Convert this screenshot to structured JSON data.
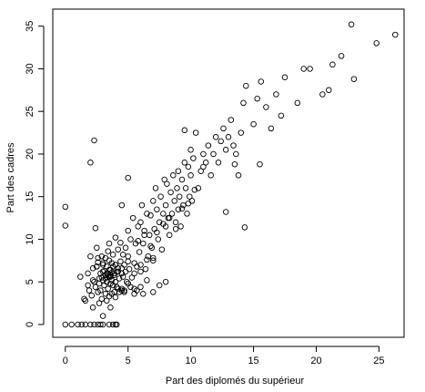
{
  "chart_data": {
    "type": "scatter",
    "title": "",
    "xlabel": "Part des diplomés du supérieur",
    "ylabel": "Part des cadres",
    "xlim": [
      -1,
      27
    ],
    "ylim": [
      -1.5,
      37
    ],
    "xticks": [
      0,
      5,
      10,
      15,
      20,
      25
    ],
    "yticks": [
      0,
      5,
      10,
      15,
      20,
      25,
      30,
      35
    ],
    "grid": false,
    "legend": "none",
    "marker": "open-circle",
    "x": [
      0.0,
      0.5,
      1.0,
      1.3,
      1.6,
      2.0,
      2.3,
      2.6,
      2.8,
      3.0,
      3.5,
      3.8,
      4.0,
      4.1,
      0.0,
      0.0,
      2.3,
      2.0,
      2.4,
      2.6,
      1.2,
      1.5,
      1.6,
      1.8,
      1.9,
      2.0,
      2.1,
      2.2,
      2.2,
      2.3,
      2.4,
      2.5,
      2.5,
      2.6,
      2.6,
      2.7,
      2.7,
      2.8,
      2.8,
      2.9,
      2.9,
      3.0,
      3.0,
      3.0,
      3.1,
      3.1,
      3.2,
      3.2,
      3.2,
      3.3,
      3.3,
      3.3,
      3.4,
      3.4,
      3.4,
      3.5,
      3.5,
      3.5,
      3.5,
      3.6,
      3.6,
      3.6,
      3.7,
      3.7,
      3.7,
      3.8,
      3.8,
      3.8,
      3.9,
      3.9,
      4.0,
      4.0,
      4.0,
      4.1,
      4.1,
      4.2,
      4.2,
      4.3,
      4.3,
      4.4,
      4.4,
      4.5,
      4.5,
      4.6,
      4.6,
      4.7,
      4.7,
      4.8,
      4.8,
      4.9,
      5.0,
      5.0,
      5.1,
      5.2,
      5.3,
      5.4,
      5.5,
      5.5,
      5.6,
      5.7,
      5.8,
      5.9,
      6.0,
      6.0,
      6.1,
      6.2,
      6.3,
      6.4,
      6.5,
      6.6,
      6.7,
      6.8,
      6.9,
      7.0,
      7.0,
      7.1,
      7.2,
      7.3,
      7.4,
      7.5,
      7.6,
      7.7,
      7.8,
      7.9,
      8.0,
      8.0,
      8.1,
      8.2,
      8.3,
      8.4,
      8.5,
      8.6,
      8.7,
      8.8,
      8.9,
      9.0,
      9.0,
      9.1,
      9.2,
      9.3,
      9.4,
      9.5,
      9.6,
      9.7,
      9.8,
      9.9,
      10.0,
      10.0,
      10.1,
      10.2,
      10.4,
      10.6,
      10.8,
      11.0,
      11.2,
      11.4,
      11.6,
      11.8,
      12.0,
      12.2,
      12.4,
      12.6,
      12.8,
      13.0,
      13.2,
      13.4,
      13.6,
      13.8,
      14.0,
      14.2,
      14.4,
      15.0,
      15.3,
      15.6,
      16.0,
      16.4,
      16.8,
      17.2,
      17.5,
      18.5,
      19.0,
      19.5,
      20.5,
      21.0,
      21.3,
      22.0,
      22.8,
      23.0,
      24.8,
      26.3,
      4.0,
      4.5,
      5.0,
      5.5,
      6.0,
      6.5,
      7.0,
      7.5,
      8.0,
      5.8,
      6.3,
      6.8,
      7.3,
      7.8,
      8.3,
      8.8,
      9.3,
      9.8,
      10.3,
      2.5,
      3.0,
      3.5,
      4.0,
      4.5,
      5.0,
      5.5,
      6.0,
      6.5,
      7.0,
      1.8,
      2.2,
      2.7,
      3.2,
      3.6,
      4.2,
      4.7,
      5.2,
      5.7,
      6.2,
      12.8,
      14.3,
      9.5,
      11.0,
      13.5,
      15.5,
      4.5,
      5.0,
      3.0,
      3.3,
      3.6,
      3.9,
      4.2,
      2.9,
      3.4,
      3.7
    ],
    "y": [
      0.0,
      0.0,
      0.0,
      0.0,
      0.0,
      0.0,
      0.0,
      0.0,
      0.0,
      0.0,
      0.0,
      0.0,
      0.0,
      0.0,
      11.6,
      13.8,
      21.6,
      19.0,
      11.3,
      7.8,
      5.6,
      3.0,
      2.8,
      6.0,
      4.0,
      8.0,
      3.4,
      6.6,
      2.0,
      5.0,
      4.4,
      9.0,
      6.8,
      3.8,
      7.3,
      5.4,
      2.5,
      6.0,
      4.0,
      8.0,
      3.0,
      7.0,
      5.2,
      1.0,
      6.3,
      4.6,
      7.8,
      5.8,
      3.6,
      6.8,
      5.0,
      2.8,
      8.6,
      6.0,
      4.2,
      7.5,
      5.6,
      3.3,
      9.5,
      6.4,
      4.8,
      2.0,
      7.2,
      5.2,
      3.6,
      6.8,
      4.6,
      8.2,
      5.8,
      3.8,
      10.2,
      7.0,
      5.0,
      6.2,
      4.4,
      8.8,
      6.6,
      5.4,
      3.8,
      7.4,
      9.6,
      6.0,
      4.2,
      8.2,
      5.6,
      7.0,
      4.0,
      9.0,
      6.2,
      5.0,
      11.0,
      8.0,
      6.5,
      10.0,
      5.5,
      12.5,
      7.2,
      4.2,
      9.5,
      6.8,
      11.5,
      8.5,
      12.0,
      7.0,
      14.0,
      9.5,
      11.0,
      6.5,
      13.0,
      8.0,
      10.5,
      12.8,
      9.0,
      14.5,
      7.5,
      11.2,
      16.0,
      13.5,
      10.0,
      12.0,
      15.0,
      8.8,
      13.0,
      17.0,
      11.5,
      14.0,
      16.5,
      12.5,
      10.5,
      15.5,
      13.0,
      17.5,
      14.5,
      12.0,
      16.0,
      18.0,
      13.5,
      15.0,
      11.5,
      17.0,
      14.0,
      19.0,
      16.0,
      13.0,
      18.5,
      15.0,
      20.5,
      17.5,
      14.5,
      19.5,
      22.5,
      16.0,
      18.0,
      20.0,
      19.0,
      21.0,
      17.5,
      20.0,
      22.0,
      19.0,
      21.5,
      23.0,
      20.5,
      22.0,
      24.0,
      21.0,
      20.0,
      17.5,
      22.5,
      26.0,
      28.0,
      23.5,
      26.5,
      28.5,
      25.5,
      23.0,
      27.0,
      24.5,
      29.0,
      26.0,
      30.0,
      30.0,
      27.0,
      27.5,
      30.5,
      31.5,
      35.2,
      28.8,
      33.0,
      34.0,
      3.2,
      4.0,
      4.8,
      3.6,
      4.4,
      5.2,
      3.8,
      4.6,
      5.0,
      9.8,
      10.5,
      9.2,
      10.8,
      11.8,
      12.5,
      11.2,
      13.6,
      14.2,
      15.8,
      6.8,
      7.2,
      6.4,
      7.0,
      6.6,
      7.4,
      6.0,
      6.2,
      7.6,
      7.8,
      4.6,
      5.2,
      4.8,
      5.4,
      5.6,
      4.2,
      3.8,
      4.4,
      4.0,
      3.6,
      13.2,
      11.4,
      22.8,
      18.5,
      18.8,
      18.8,
      14.0,
      17.2,
      6.2,
      6.0,
      5.8,
      6.0,
      6.2,
      5.5,
      5.7,
      6.1
    ]
  }
}
